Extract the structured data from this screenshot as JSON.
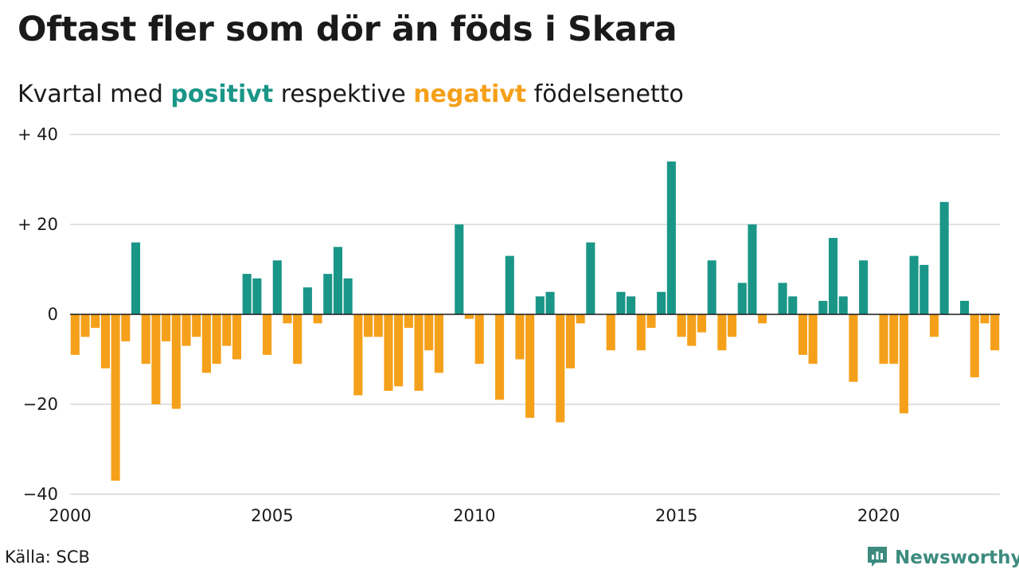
{
  "title": "Oftast fler som dör än föds i Skara",
  "subtitle": {
    "prefix": "Kvartal med ",
    "positive": "positivt",
    "middle": " respektive ",
    "negative": "negativt",
    "suffix": " födelsenetto"
  },
  "source": "Källa: SCB",
  "brand": {
    "name": "Newsworthy",
    "icon": "newsworthy-logo-icon"
  },
  "colors": {
    "positive": "#1a9688",
    "negative": "#f5a01a",
    "grid": "#e0e0e0",
    "axis": "#1a1a1a"
  },
  "chart_data": {
    "type": "bar",
    "title": "Oftast fler som dör än föds i Skara",
    "subtitle": "Kvartal med positivt respektive negativt födelsenetto",
    "xlabel": "",
    "ylabel": "",
    "ylim": [
      -40,
      40
    ],
    "yticks": [
      {
        "value": 40,
        "label": "+ 40"
      },
      {
        "value": 20,
        "label": "+ 20"
      },
      {
        "value": 0,
        "label": "0"
      },
      {
        "value": -20,
        "label": "−20"
      },
      {
        "value": -40,
        "label": "−40"
      }
    ],
    "xlim": [
      2000,
      2023
    ],
    "xticks": [
      {
        "value": 2000,
        "label": "2000"
      },
      {
        "value": 2005,
        "label": "2005"
      },
      {
        "value": 2010,
        "label": "2010"
      },
      {
        "value": 2015,
        "label": "2015"
      },
      {
        "value": 2020,
        "label": "2020"
      }
    ],
    "grid": true,
    "categories": [
      "2000Q1",
      "2000Q2",
      "2000Q3",
      "2000Q4",
      "2001Q1",
      "2001Q2",
      "2001Q3",
      "2001Q4",
      "2002Q1",
      "2002Q2",
      "2002Q3",
      "2002Q4",
      "2003Q1",
      "2003Q2",
      "2003Q3",
      "2003Q4",
      "2004Q1",
      "2004Q2",
      "2004Q3",
      "2004Q4",
      "2005Q1",
      "2005Q2",
      "2005Q3",
      "2005Q4",
      "2006Q1",
      "2006Q2",
      "2006Q3",
      "2006Q4",
      "2007Q1",
      "2007Q2",
      "2007Q3",
      "2007Q4",
      "2008Q1",
      "2008Q2",
      "2008Q3",
      "2008Q4",
      "2009Q1",
      "2009Q2",
      "2009Q3",
      "2009Q4",
      "2010Q1",
      "2010Q2",
      "2010Q3",
      "2010Q4",
      "2011Q1",
      "2011Q2",
      "2011Q3",
      "2011Q4",
      "2012Q1",
      "2012Q2",
      "2012Q3",
      "2012Q4",
      "2013Q1",
      "2013Q2",
      "2013Q3",
      "2013Q4",
      "2014Q1",
      "2014Q2",
      "2014Q3",
      "2014Q4",
      "2015Q1",
      "2015Q2",
      "2015Q3",
      "2015Q4",
      "2016Q1",
      "2016Q2",
      "2016Q3",
      "2016Q4",
      "2017Q1",
      "2017Q2",
      "2017Q3",
      "2017Q4",
      "2018Q1",
      "2018Q2",
      "2018Q3",
      "2018Q4",
      "2019Q1",
      "2019Q2",
      "2019Q3",
      "2019Q4",
      "2020Q1",
      "2020Q2",
      "2020Q3",
      "2020Q4",
      "2021Q1",
      "2021Q2",
      "2021Q3",
      "2021Q4",
      "2022Q1",
      "2022Q2",
      "2022Q3",
      "2022Q4"
    ],
    "values": [
      -9,
      -5,
      -3,
      -12,
      -37,
      -6,
      16,
      -11,
      -20,
      -6,
      -21,
      -7,
      -5,
      -13,
      -11,
      -7,
      -10,
      9,
      8,
      -9,
      12,
      -2,
      -11,
      6,
      -2,
      9,
      15,
      8,
      -18,
      -5,
      -5,
      -17,
      -16,
      -3,
      -17,
      -8,
      -13,
      0,
      20,
      -1,
      -11,
      0,
      -19,
      13,
      -10,
      -23,
      4,
      5,
      -24,
      -12,
      -2,
      16,
      0,
      -8,
      5,
      4,
      -8,
      -3,
      5,
      34,
      -5,
      -7,
      -4,
      12,
      -8,
      -5,
      7,
      20,
      -2,
      0,
      7,
      4,
      -9,
      -11,
      3,
      17,
      4,
      -15,
      12,
      0,
      -11,
      -11,
      -22,
      13,
      11,
      -5,
      25,
      0,
      3,
      -14,
      -2,
      -8
    ]
  }
}
